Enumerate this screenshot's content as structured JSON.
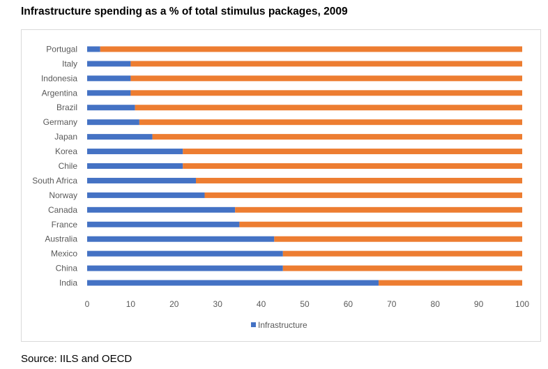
{
  "title": "Infrastructure spending as a % of total stimulus packages, 2009",
  "source": "Source: IILS and OECD",
  "colors": {
    "infrastructure": "#4472C4",
    "other": "#ED7D31",
    "gridline": "#d9d9d9"
  },
  "chart_data": {
    "type": "bar",
    "orientation": "horizontal",
    "stacked": true,
    "categories": [
      "Portugal",
      "Italy",
      "Indonesia",
      "Argentina",
      "Brazil",
      "Germany",
      "Japan",
      "Korea",
      "Chile",
      "South Africa",
      "Norway",
      "Canada",
      "France",
      "Australia",
      "Mexico",
      "China",
      "India"
    ],
    "series": [
      {
        "name": "Infrastructure",
        "values": [
          3,
          10,
          10,
          10,
          11,
          12,
          15,
          22,
          22,
          25,
          27,
          34,
          35,
          43,
          45,
          45,
          67
        ]
      },
      {
        "values": [
          97,
          90,
          90,
          90,
          89,
          88,
          85,
          78,
          78,
          75,
          73,
          66,
          65,
          57,
          55,
          55,
          33
        ]
      }
    ],
    "xlim": [
      0,
      100
    ],
    "xticks": [
      "0",
      "10",
      "20",
      "30",
      "40",
      "50",
      "60",
      "70",
      "80",
      "90",
      "100"
    ],
    "grid": false,
    "legend": "bottom"
  }
}
